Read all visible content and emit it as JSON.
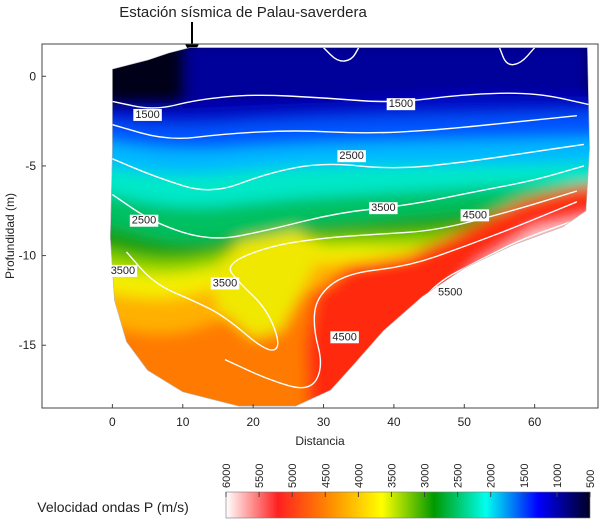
{
  "chart_data": {
    "type": "heatmap",
    "annotation": "Estación sísmica de Palau-saverdera",
    "annotation_x": 12,
    "xlabel": "Distancia",
    "ylabel": "Profundidad (m)",
    "xlim": [
      -10,
      69
    ],
    "ylim": [
      -18.5,
      1.8
    ],
    "xticks": [
      0,
      10,
      20,
      30,
      40,
      50,
      60
    ],
    "xtick_labels": [
      "0",
      "10",
      "20",
      "30",
      "40",
      "50",
      "60"
    ],
    "yticks": [
      0,
      -5,
      -10,
      -15
    ],
    "ytick_labels": [
      "0",
      "-5",
      "-10",
      "-15"
    ],
    "grid": false,
    "colorbar": {
      "label": "Velocidad ondas P (m/s)",
      "range": [
        6000,
        500
      ],
      "ticks": [
        6000,
        5500,
        5000,
        4500,
        4000,
        3500,
        3000,
        2500,
        2000,
        1500,
        1000,
        500
      ],
      "tick_labels": [
        "6000",
        "5500",
        "5000",
        "4500",
        "4000",
        "3500",
        "3000",
        "2500",
        "2000",
        "1500",
        "1000",
        "500"
      ],
      "colors": [
        "#ffffff",
        "#ff2020",
        "#ff8c00",
        "#ffff00",
        "#009900",
        "#00ffee",
        "#0000ff",
        "#000022"
      ]
    },
    "contour_labels": [
      {
        "text": "1500",
        "x": 5,
        "y": -2.1
      },
      {
        "text": "1500",
        "x": 41,
        "y": -1.5
      },
      {
        "text": "2500",
        "x": 34,
        "y": -4.4
      },
      {
        "text": "2500",
        "x": 4.5,
        "y": -8.0
      },
      {
        "text": "3500",
        "x": 38.5,
        "y": -7.3
      },
      {
        "text": "4500",
        "x": 51.5,
        "y": -7.7
      },
      {
        "text": "3500",
        "x": 1.5,
        "y": -10.8
      },
      {
        "text": "3500",
        "x": 16,
        "y": -11.5
      },
      {
        "text": "4500",
        "x": 33,
        "y": -14.5
      },
      {
        "text": "5500",
        "x": 48,
        "y": -12.0
      }
    ]
  }
}
